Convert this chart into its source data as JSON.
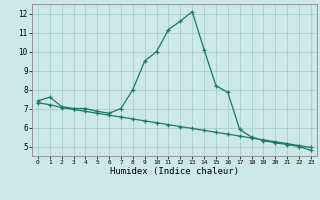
{
  "line1_x": [
    0,
    1,
    2,
    3,
    4,
    5,
    6,
    7,
    8,
    9,
    10,
    11,
    12,
    13,
    14,
    15,
    16,
    17,
    18,
    19,
    20,
    21,
    22,
    23
  ],
  "line1_y": [
    7.4,
    7.6,
    7.1,
    7.0,
    7.0,
    6.85,
    6.75,
    7.0,
    8.0,
    9.5,
    10.0,
    11.15,
    11.6,
    12.1,
    10.1,
    8.2,
    7.85,
    5.9,
    5.5,
    5.3,
    5.2,
    5.1,
    5.0,
    4.8
  ],
  "line2_x": [
    0,
    1,
    2,
    3,
    4,
    5,
    6,
    7,
    8,
    9,
    10,
    11,
    12,
    13,
    14,
    15,
    16,
    17,
    18,
    19,
    20,
    21,
    22,
    23
  ],
  "line2_y": [
    7.3,
    7.2,
    7.05,
    6.95,
    6.85,
    6.75,
    6.65,
    6.55,
    6.45,
    6.35,
    6.25,
    6.15,
    6.05,
    5.95,
    5.85,
    5.75,
    5.65,
    5.55,
    5.45,
    5.35,
    5.25,
    5.15,
    5.05,
    4.95
  ],
  "line_color": "#1a7a6a",
  "bg_color": "#cce8e8",
  "grid_color": "#aacece",
  "xlabel": "Humidex (Indice chaleur)",
  "xlim": [
    -0.5,
    23.5
  ],
  "ylim": [
    4.5,
    12.5
  ],
  "yticks": [
    5,
    6,
    7,
    8,
    9,
    10,
    11,
    12
  ],
  "xticks": [
    0,
    1,
    2,
    3,
    4,
    5,
    6,
    7,
    8,
    9,
    10,
    11,
    12,
    13,
    14,
    15,
    16,
    17,
    18,
    19,
    20,
    21,
    22,
    23
  ]
}
